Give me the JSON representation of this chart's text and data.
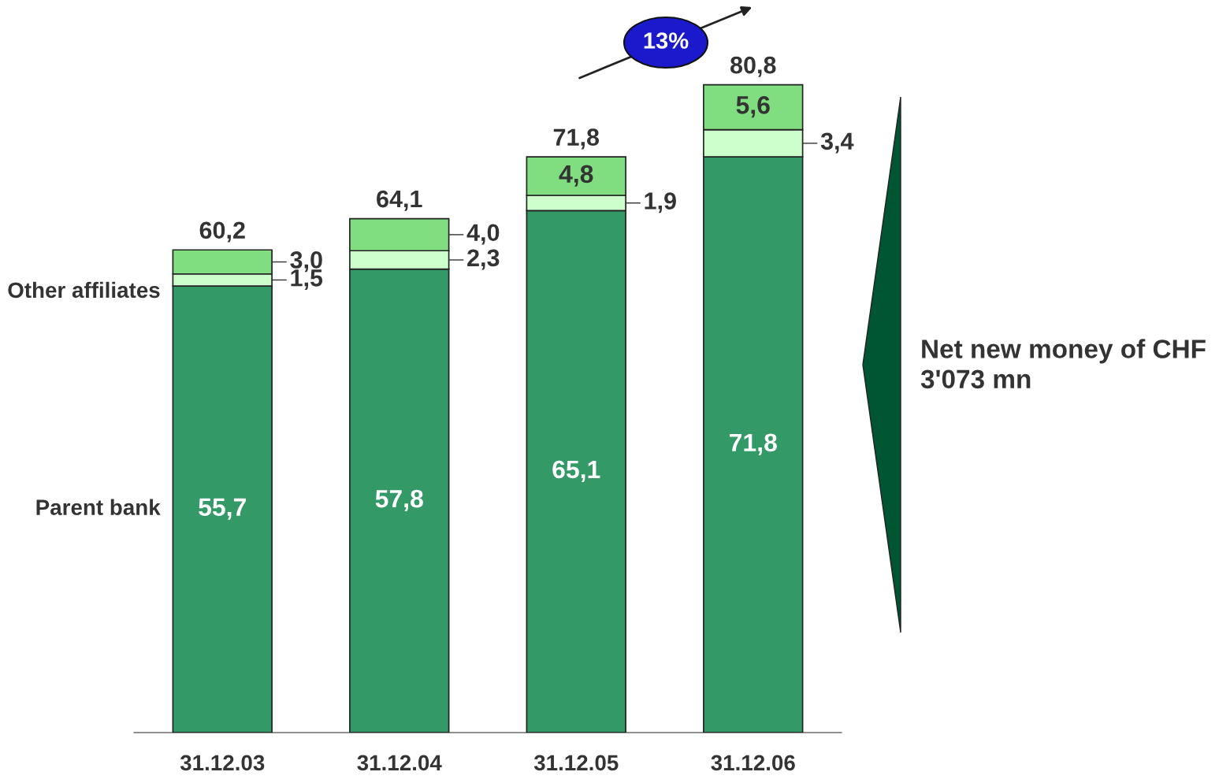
{
  "chart_data": {
    "type": "bar",
    "stacked": true,
    "categories": [
      "31.12.03",
      "31.12.04",
      "31.12.05",
      "31.12.06"
    ],
    "series": [
      {
        "name": "Parent bank",
        "color": "#339966",
        "values": [
          55.7,
          57.8,
          65.1,
          71.8
        ],
        "value_labels": [
          "55,7",
          "57,8",
          "65,1",
          "71,8"
        ]
      },
      {
        "name": "Other affiliates",
        "color": "#ccffcc",
        "values": [
          1.5,
          2.3,
          1.9,
          3.4
        ],
        "value_labels": [
          "1,5",
          "2,3",
          "1,9",
          "3,4"
        ]
      },
      {
        "color": "#80dd80",
        "values": [
          3.0,
          4.0,
          4.8,
          5.6
        ],
        "value_labels": [
          "3,0",
          "4,0",
          "4,8",
          "5,6"
        ]
      }
    ],
    "totals": [
      "60,2",
      "64,1",
      "71,8",
      "80,8"
    ],
    "annotations": [
      "13%",
      "Net new money of CHF 3'073 mn"
    ],
    "legend": false
  }
}
